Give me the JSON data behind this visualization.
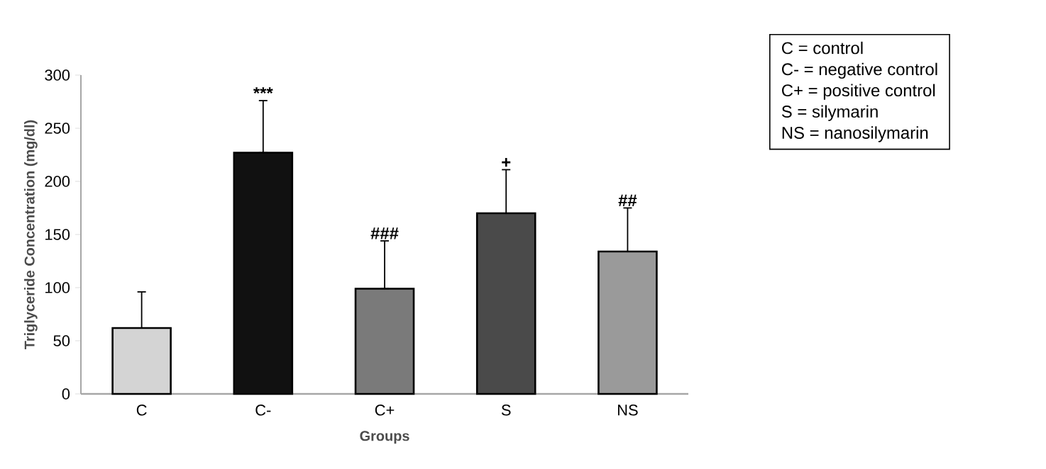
{
  "chart_data": {
    "type": "bar",
    "xlabel": "Groups",
    "ylabel": "Triglyceride Concentration (mg/dl)",
    "categories": [
      "C",
      "C-",
      "C+",
      "S",
      "NS"
    ],
    "values": [
      62,
      227,
      99,
      170,
      134
    ],
    "colors": [
      "#d4d4d4",
      "#111111",
      "#7a7a7a",
      "#4a4a4a",
      "#9a9a9a"
    ],
    "errors": [
      [
        62,
        96
      ],
      [
        227,
        276
      ],
      [
        99,
        144
      ],
      [
        170,
        211
      ],
      [
        134,
        175
      ]
    ],
    "ylim": [
      0,
      300
    ],
    "yticks": [
      0,
      50,
      100,
      150,
      200,
      250,
      300
    ],
    "grid": false,
    "annotations": [
      {
        "text": "***",
        "x": "C-",
        "y": 276
      },
      {
        "text": "###",
        "x": "C+",
        "y": 144
      },
      {
        "text": "+",
        "x": "S",
        "y": 211
      },
      {
        "text": "##",
        "x": "NS",
        "y": 175
      },
      "C = control",
      "C- = negative control",
      "C+ = positive control",
      "S = silymarin",
      "NS = nanosilymarin"
    ]
  }
}
